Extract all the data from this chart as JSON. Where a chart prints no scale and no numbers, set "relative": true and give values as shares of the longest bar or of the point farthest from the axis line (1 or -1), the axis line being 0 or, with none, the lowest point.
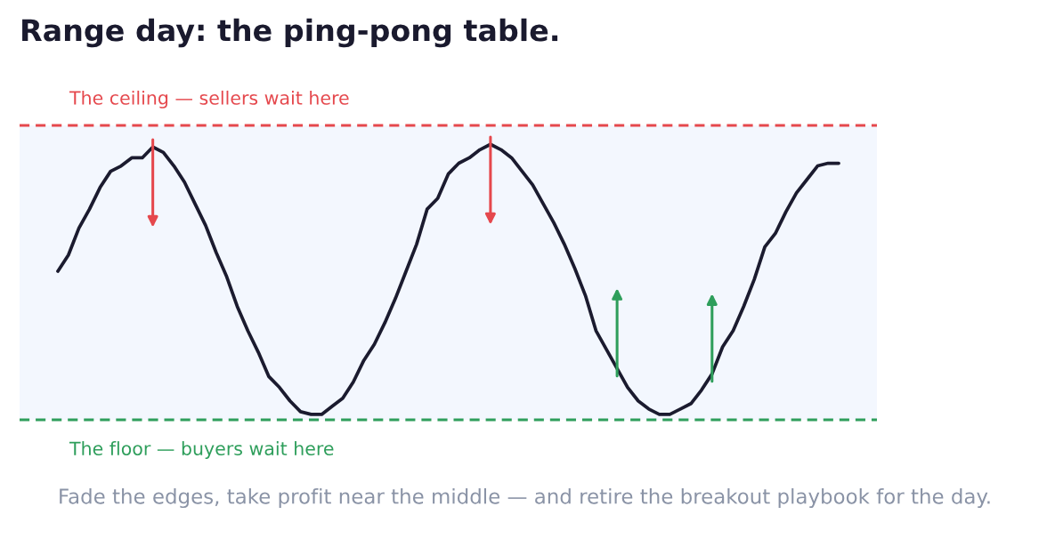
{
  "chart_data": {
    "type": "line",
    "title": "Range day: the ping-pong table.",
    "categories": [
      null,
      null,
      null,
      null,
      null,
      null,
      null,
      null,
      null,
      null,
      null,
      null,
      null,
      null,
      null,
      null,
      null,
      null,
      null,
      null,
      null,
      null,
      null,
      null,
      null,
      null,
      null,
      null,
      null,
      null,
      null,
      null,
      null,
      null,
      null,
      null,
      null,
      null,
      null,
      null,
      null,
      null,
      null,
      null,
      null,
      null,
      null,
      null,
      null,
      null,
      null,
      null,
      null,
      null,
      null,
      null,
      null,
      null,
      null,
      null,
      null,
      null,
      null,
      null,
      null,
      null,
      null,
      null,
      null,
      null,
      null,
      null,
      null,
      null,
      null
    ],
    "relative": true,
    "series": [
      {
        "color": "#1b1b2f",
        "values": [
          0.53,
          0.59,
          0.69,
          0.76,
          0.84,
          0.9,
          0.92,
          0.95,
          0.95,
          0.99,
          0.97,
          0.92,
          0.86,
          0.78,
          0.7,
          0.6,
          0.51,
          0.4,
          0.31,
          0.23,
          0.14,
          0.1,
          0.05,
          0.01,
          0,
          0,
          0.03,
          0.06,
          0.12,
          0.2,
          0.26,
          0.34,
          0.43,
          0.53,
          0.63,
          0.76,
          0.8,
          0.89,
          0.93,
          0.95,
          0.98,
          1,
          0.98,
          0.95,
          0.9,
          0.85,
          0.78,
          0.71,
          0.63,
          0.54,
          0.44,
          0.31,
          0.24,
          0.17,
          0.1,
          0.05,
          0.02,
          0,
          0,
          0.02,
          0.04,
          0.09,
          0.15,
          0.25,
          0.31,
          0.4,
          0.5,
          0.62,
          0.67,
          0.75,
          0.82,
          0.87,
          0.92,
          0.93,
          0.93
        ]
      }
    ],
    "ref_lines": [
      {
        "axis": "y",
        "value": 1.07,
        "label": "The ceiling — sellers wait here",
        "color": "#e5484d",
        "line_style": "dashed"
      },
      {
        "axis": "y",
        "value": -0.02,
        "label": "The floor — buyers wait here",
        "color": "#2e9e5b",
        "line_style": "dashed"
      }
    ],
    "bands": [
      {
        "axis": "y",
        "from": -0.02,
        "to": 1.07,
        "color": "#f3f7fe"
      }
    ],
    "annotations": [
      "Fade the edges, take profit near the middle — and retire the breakout playbook for the day."
    ],
    "tick_labels": false,
    "line_style": "solid",
    "marker": "none"
  }
}
